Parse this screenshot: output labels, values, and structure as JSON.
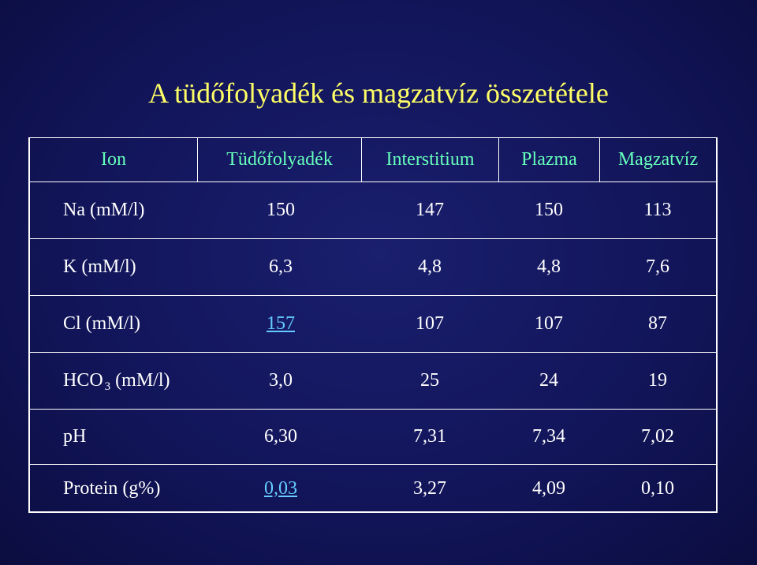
{
  "title": "A tüdőfolyadék és magzatvíz összetétele",
  "headers": [
    "Ion",
    "Tüdőfolyadék",
    "Interstitium",
    "Plazma",
    "Magzatvíz"
  ],
  "rows": [
    {
      "label": "Na (mM/l)",
      "values": [
        "150",
        "147",
        "150",
        "113"
      ]
    },
    {
      "label": "K (mM/l)",
      "values": [
        "6,3",
        "4,8",
        "4,8",
        "7,6"
      ]
    },
    {
      "label": "Cl (mM/l)",
      "values": [
        "157",
        "107",
        "107",
        "87"
      ]
    },
    {
      "label_main": "HCO",
      "label_sub": "3",
      "label_rest": "(mM/l)",
      "values": [
        "3,0",
        "25",
        "24",
        "19"
      ]
    },
    {
      "label": "pH",
      "values": [
        "6,30",
        "7,31",
        "7,34",
        "7,02"
      ]
    },
    {
      "label": "Protein (g%)",
      "values": [
        "0,03",
        "3,27",
        "4,09",
        "0,10"
      ]
    }
  ],
  "colors": {
    "title": "#ffff66",
    "header": "#66ffbb",
    "text": "#ffffff",
    "link": "#66ccff",
    "background": "#12155a"
  }
}
